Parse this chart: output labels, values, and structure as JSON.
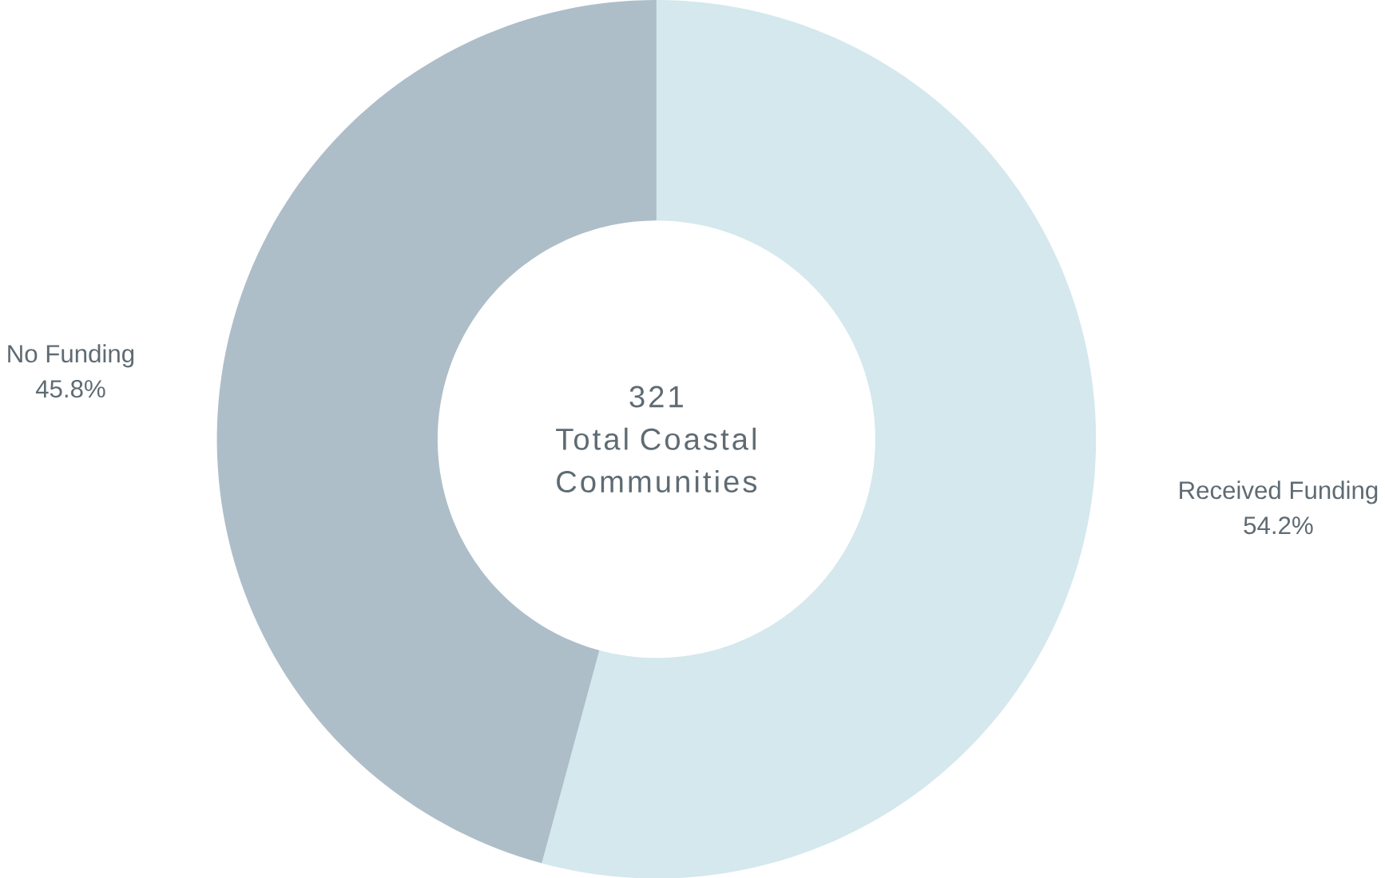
{
  "chart_data": {
    "type": "donut",
    "categories": [
      "Received Funding",
      "No Funding"
    ],
    "values": [
      54.2,
      45.8
    ],
    "colors": [
      "#d4e8ee",
      "#adbec9"
    ],
    "value_labels": [
      "54.2%",
      "45.8%"
    ],
    "annotations": [
      "321",
      "Total Coastal Communities"
    ]
  }
}
